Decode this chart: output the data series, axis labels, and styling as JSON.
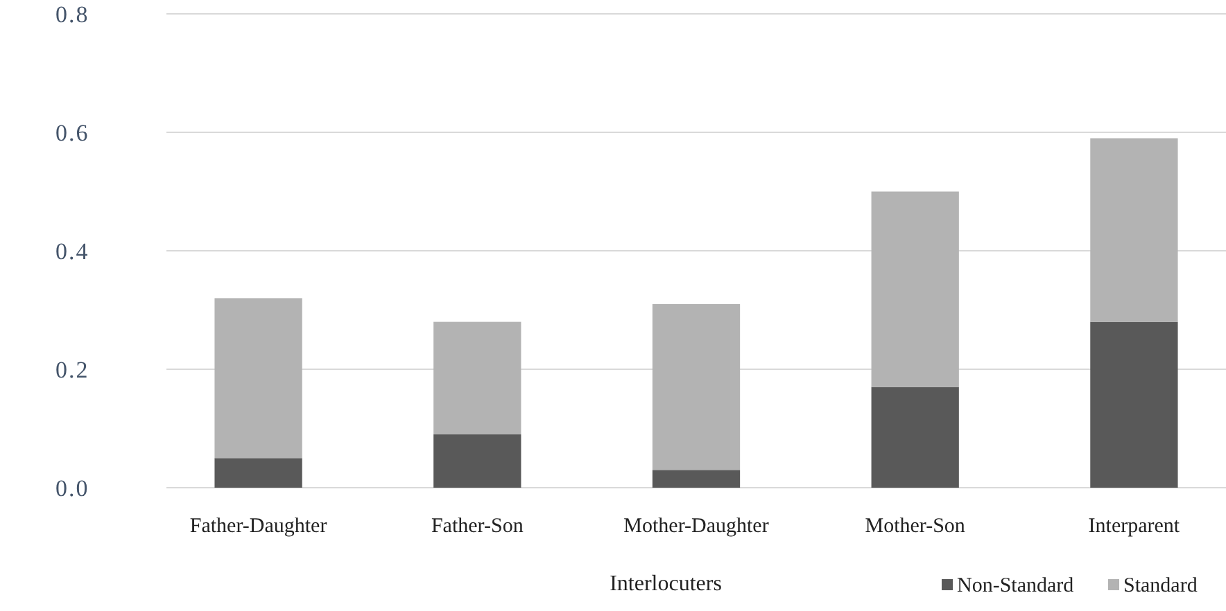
{
  "chart_data": {
    "type": "bar",
    "xlabel": "Interlocuters",
    "categories": [
      "Father-Daughter",
      "Father-Son",
      "Mother-Daughter",
      "Mother-Son",
      "Interparent"
    ],
    "series": [
      {
        "name": "Non-Standard",
        "color": "#595959",
        "values": [
          0.05,
          0.09,
          0.03,
          0.17,
          0.28
        ]
      },
      {
        "name": "Standard",
        "color": "#b3b3b3",
        "values": [
          0.27,
          0.19,
          0.28,
          0.33,
          0.31
        ]
      }
    ],
    "stacked": true,
    "ylim": [
      0,
      0.8
    ],
    "yticks": [
      {
        "value": 0,
        "label": "0.0"
      },
      {
        "value": 0.2,
        "label": "0.2"
      },
      {
        "value": 0.4,
        "label": "0.4"
      },
      {
        "value": 0.6,
        "label": "0.6"
      },
      {
        "value": 0.8,
        "label": "0.8"
      }
    ],
    "grid": "y",
    "legend": "bottom right"
  }
}
